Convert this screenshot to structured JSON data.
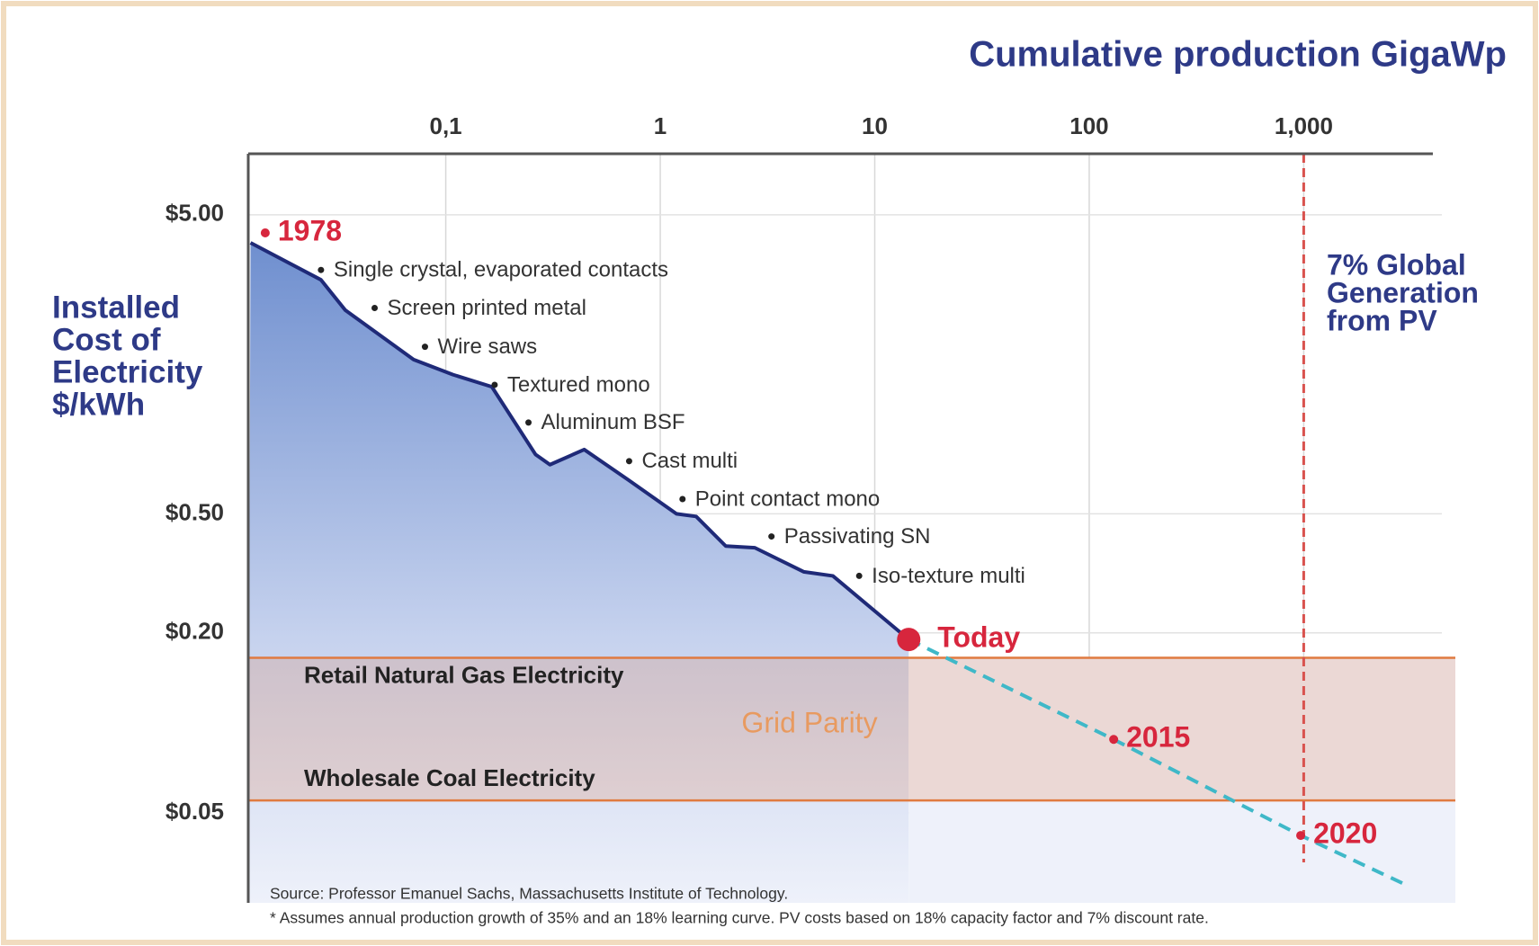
{
  "chart_data": {
    "type": "line",
    "title": "Cumulative production GigaWp",
    "ylabel": [
      "Installed",
      "Cost of",
      "Electricity",
      "$/kWh"
    ],
    "xscale": "log",
    "yscale": "log",
    "grid": true,
    "xlim": [
      0.012,
      4000
    ],
    "ylim": [
      0.025,
      8
    ],
    "xticks": [
      {
        "value": 0.1,
        "label": "0,1"
      },
      1,
      10,
      100,
      {
        "value": 1000,
        "label": "1,000"
      }
    ],
    "yticks": [
      {
        "value": 5,
        "label": "$5.00"
      },
      {
        "value": 0.5,
        "label": "$0.50"
      },
      {
        "value": 0.2,
        "label": "$0.20"
      },
      {
        "value": 0.05,
        "label": "$0.05"
      }
    ],
    "series": [
      {
        "color": "#1f2a78",
        "dashed": false,
        "x": [
          0.0123,
          0.0262,
          0.034,
          0.0708,
          0.108,
          0.164,
          0.262,
          0.306,
          0.442,
          0.708,
          1.19,
          1.47,
          2.02,
          2.76,
          4.66,
          6.38,
          14.4
        ],
        "values": [
          4.03,
          3.03,
          2.4,
          1.64,
          1.46,
          1.33,
          0.79,
          0.73,
          0.82,
          0.65,
          0.5,
          0.49,
          0.39,
          0.385,
          0.32,
          0.31,
          0.19
        ]
      },
      {
        "color": "#3fb8c8",
        "dashed": true,
        "x": [
          14.4,
          130,
          968,
          2910
        ],
        "values": [
          0.19,
          0.088,
          0.042,
          0.029
        ]
      }
    ],
    "milestones": [
      {
        "label": "Single crystal, evaporated contacts",
        "x": 0.0262,
        "y": 3.27
      },
      {
        "label": "Screen printed metal",
        "x": 0.0466,
        "y": 2.44
      },
      {
        "label": "Wire saws",
        "x": 0.08,
        "y": 1.81
      },
      {
        "label": "Textured  mono",
        "x": 0.169,
        "y": 1.35
      },
      {
        "label": "Aluminum BSF",
        "x": 0.243,
        "y": 1.01
      },
      {
        "label": "Cast multi",
        "x": 0.716,
        "y": 0.75
      },
      {
        "label": "Point contact mono",
        "x": 1.27,
        "y": 0.56
      },
      {
        "label": "Passivating SN",
        "x": 3.3,
        "y": 0.42
      },
      {
        "label": "Iso-texture multi",
        "x": 8.46,
        "y": 0.31
      }
    ],
    "points_color": "#d7263d",
    "points": [
      {
        "label": "1978",
        "x": 0.0144,
        "y": 4.35
      },
      {
        "label": "Today",
        "x": 14.4,
        "y": 0.19
      },
      {
        "label": "2015",
        "x": 130,
        "y": 0.088
      },
      {
        "label": "2020",
        "x": 968,
        "y": 0.042
      }
    ],
    "band_label": "Grid Parity",
    "band_color": "#e07a40",
    "bands": [
      {
        "label": "Retail Natural Gas Electricity",
        "value": 0.165
      },
      {
        "label": "Wholesale Coal Electricity",
        "value": 0.055
      }
    ],
    "vline": {
      "x": 1000,
      "color": "#d9534f",
      "label": [
        "7% Global",
        "Generation",
        "from PV"
      ]
    },
    "source": [
      "Source: Professor Emanuel Sachs, Massachusetts Institute of Technology.",
      "* Assumes annual production growth of 35% and an 18% learning curve. PV costs based on 18% capacity factor and 7% discount rate."
    ]
  }
}
